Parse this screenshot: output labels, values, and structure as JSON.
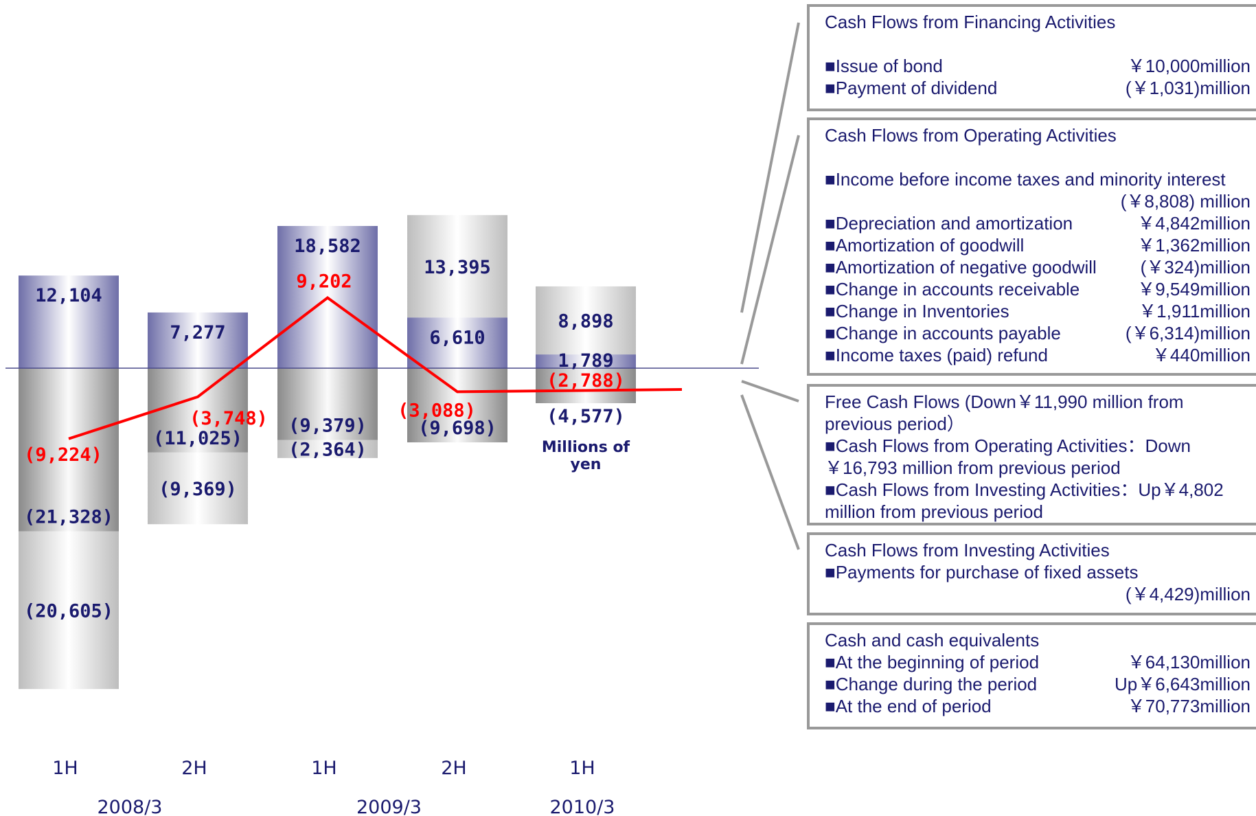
{
  "chart_data": {
    "type": "bar",
    "unit_label": "Millions of yen",
    "categories": [
      "1H",
      "2H",
      "1H",
      "2H",
      "1H"
    ],
    "fiscal_years": [
      {
        "label": "2008/3",
        "columns": [
          0,
          1
        ]
      },
      {
        "label": "2009/3",
        "columns": [
          2,
          3
        ]
      },
      {
        "label": "2010/3",
        "columns": [
          4
        ]
      }
    ],
    "ylim": [
      -21500,
      21000
    ],
    "series": [
      {
        "key": "financing_top",
        "values": [
          null,
          null,
          null,
          13395,
          8898
        ],
        "labels": [
          "",
          "",
          "",
          "13,395",
          "8,898"
        ],
        "color": "#c4c4c4"
      },
      {
        "key": "operating",
        "values": [
          12104,
          7277,
          18582,
          6610,
          1789
        ],
        "labels": [
          "12,104",
          "7,277",
          "18,582",
          "6,610",
          "1,789"
        ],
        "color": "#6b6ba6"
      },
      {
        "key": "investing",
        "values": [
          -21328,
          -11025,
          -9379,
          -9698,
          -4577
        ],
        "labels": [
          "(21,328)",
          "(11,025)",
          "(9,379)",
          "(9,698)",
          "(4,577)"
        ],
        "color": "#8c8c8c"
      },
      {
        "key": "financing_bottom",
        "values": [
          -20605,
          -9369,
          -2364,
          null,
          null
        ],
        "labels": [
          "(20,605)",
          "(9,369)",
          "(2,364)",
          "",
          ""
        ],
        "color": "#c4c4c4"
      },
      {
        "key": "free_cash_flow",
        "type": "line",
        "values": [
          -9224,
          -3748,
          9202,
          -3088,
          -2788
        ],
        "labels": [
          "(9,224)",
          "(3,748)",
          "9,202",
          "(3,088)",
          "(2,788)"
        ],
        "color": "#ff0000"
      }
    ]
  },
  "colors": {
    "navy_text": "#1a1a6e",
    "line_red": "#ff0000",
    "box_border": "#999999"
  },
  "panels": {
    "financing": {
      "title": "Cash Flows from Financing Activities",
      "rows": [
        {
          "item": "■Issue of bond",
          "amount": "￥10,000million"
        },
        {
          "item": "■Payment of dividend",
          "amount": "(￥1,031)million"
        }
      ]
    },
    "operating": {
      "title": "Cash Flows from Operating Activities",
      "first_item": "■Income before income taxes and minority interest",
      "first_amount": "(￥8,808) million",
      "rows": [
        {
          "item": "■Depreciation and amortization",
          "amount": "￥4,842million"
        },
        {
          "item": "■Amortization of goodwill",
          "amount": "￥1,362million"
        },
        {
          "item": "■Amortization of negative goodwill",
          "amount": "(￥324)million"
        },
        {
          "item": "■Change in accounts receivable",
          "amount": "￥9,549million"
        },
        {
          "item": "■Change in Inventories",
          "amount": "￥1,911million"
        },
        {
          "item": "■Change in accounts payable",
          "amount": "(￥6,314)million"
        },
        {
          "item": "■Income taxes (paid) refund",
          "amount": "￥440million"
        }
      ]
    },
    "free": {
      "title": "Free Cash Flows (Down￥11,990 million from previous period）",
      "item1": "■Cash Flows from Operating Activities：Down ￥16,793 million from previous period",
      "item2": "■Cash Flows from Investing Activities：Up￥4,802 million from previous period"
    },
    "investing": {
      "title": "Cash Flows from Investing Activities",
      "item": "■Payments for purchase of fixed assets",
      "amount": "(￥4,429)million"
    },
    "cash": {
      "title": "Cash and cash equivalents",
      "rows": [
        {
          "item": "■At the beginning of period",
          "amount": "￥64,130million"
        },
        {
          "item": "■Change during the period",
          "amount": "Up￥6,643million"
        },
        {
          "item": "■At the end of period",
          "amount": "￥70,773million"
        }
      ]
    }
  }
}
